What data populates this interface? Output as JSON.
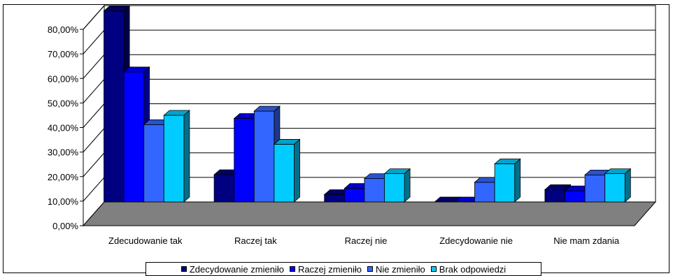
{
  "chart_data": {
    "type": "bar",
    "categories": [
      "Zdecudowanie tak",
      "Raczej tak",
      "Raczej nie",
      "Zdecydowanie nie",
      "Nie mam zdania"
    ],
    "series": [
      {
        "name": "Zdecydowanie zmieniło",
        "color": "#000080",
        "values": [
          77.8,
          11.1,
          3.0,
          0.0,
          5.0
        ]
      },
      {
        "name": "Raczej zmieniło",
        "color": "#0000ff",
        "values": [
          53.0,
          34.0,
          5.5,
          0.0,
          4.5
        ]
      },
      {
        "name": "Nie zmieniło",
        "color": "#3366ff",
        "values": [
          31.5,
          37.0,
          9.5,
          8.0,
          11.0
        ]
      },
      {
        "name": "Brak odpowiedzi",
        "color": "#00ccff",
        "values": [
          35.3,
          23.5,
          11.5,
          15.5,
          11.5
        ]
      }
    ],
    "ylim": [
      0,
      80
    ],
    "yticks": [
      "0,00%",
      "10,00%",
      "20,00%",
      "30,00%",
      "40,00%",
      "50,00%",
      "60,00%",
      "70,00%",
      "80,00%"
    ],
    "grid": true,
    "legend_position": "bottom",
    "floor_color": "#808080",
    "title": "",
    "xlabel": "",
    "ylabel": ""
  }
}
